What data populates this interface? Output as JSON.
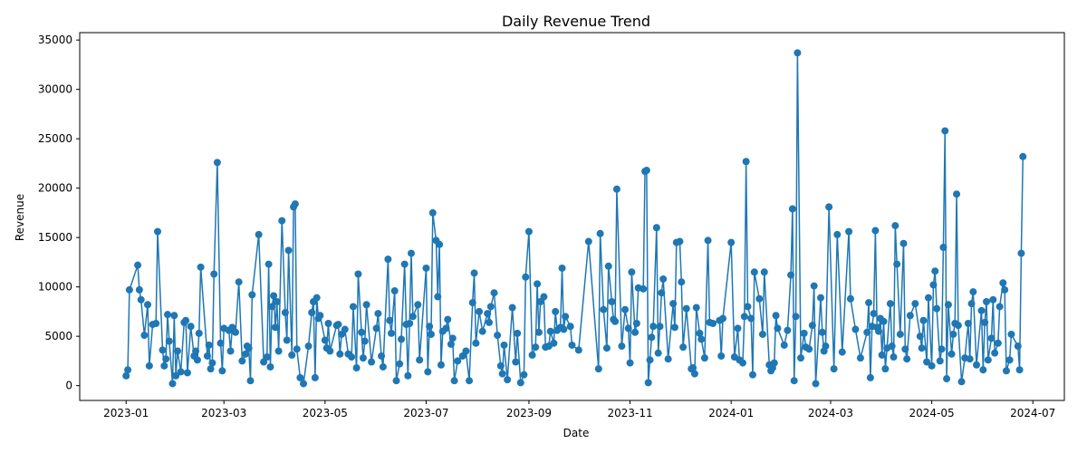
{
  "chart_data": {
    "type": "line",
    "title": "Daily Revenue Trend",
    "x_label": "Date",
    "y_label": "Revenue",
    "color": "#1f77b4",
    "grid": false,
    "x": [
      "2023-01-01",
      "2023-01-02",
      "2023-01-03",
      "2023-01-08",
      "2023-01-09",
      "2023-01-10",
      "2023-01-12",
      "2023-01-14",
      "2023-01-15",
      "2023-01-17",
      "2023-01-19",
      "2023-01-20",
      "2023-01-23",
      "2023-01-24",
      "2023-01-25",
      "2023-01-26",
      "2023-01-27",
      "2023-01-29",
      "2023-01-30",
      "2023-01-31",
      "2023-02-01",
      "2023-02-03",
      "2023-02-05",
      "2023-02-06",
      "2023-02-07",
      "2023-02-09",
      "2023-02-11",
      "2023-02-12",
      "2023-02-13",
      "2023-02-14",
      "2023-02-15",
      "2023-02-19",
      "2023-02-20",
      "2023-02-21",
      "2023-02-22",
      "2023-02-23",
      "2023-02-25",
      "2023-02-27",
      "2023-02-28",
      "2023-03-01",
      "2023-03-04",
      "2023-03-05",
      "2023-03-06",
      "2023-03-08",
      "2023-03-10",
      "2023-03-12",
      "2023-03-14",
      "2023-03-15",
      "2023-03-16",
      "2023-03-17",
      "2023-03-18",
      "2023-03-22",
      "2023-03-25",
      "2023-03-27",
      "2023-03-28",
      "2023-03-29",
      "2023-03-30",
      "2023-03-31",
      "2023-04-01",
      "2023-04-02",
      "2023-04-03",
      "2023-04-05",
      "2023-04-07",
      "2023-04-08",
      "2023-04-09",
      "2023-04-11",
      "2023-04-12",
      "2023-04-13",
      "2023-04-14",
      "2023-04-16",
      "2023-04-18",
      "2023-04-21",
      "2023-04-23",
      "2023-04-24",
      "2023-04-25",
      "2023-04-26",
      "2023-04-27",
      "2023-04-28",
      "2023-05-01",
      "2023-05-02",
      "2023-05-03",
      "2023-05-04",
      "2023-05-08",
      "2023-05-09",
      "2023-05-10",
      "2023-05-11",
      "2023-05-13",
      "2023-05-15",
      "2023-05-17",
      "2023-05-18",
      "2023-05-20",
      "2023-05-21",
      "2023-05-23",
      "2023-05-24",
      "2023-05-25",
      "2023-05-26",
      "2023-05-29",
      "2023-06-01",
      "2023-06-02",
      "2023-06-04",
      "2023-06-05",
      "2023-06-08",
      "2023-06-09",
      "2023-06-10",
      "2023-06-12",
      "2023-06-13",
      "2023-06-15",
      "2023-06-16",
      "2023-06-18",
      "2023-06-19",
      "2023-06-20",
      "2023-06-21",
      "2023-06-22",
      "2023-06-23",
      "2023-06-26",
      "2023-06-27",
      "2023-07-01",
      "2023-07-02",
      "2023-07-03",
      "2023-07-04",
      "2023-07-05",
      "2023-07-07",
      "2023-07-08",
      "2023-07-09",
      "2023-07-10",
      "2023-07-11",
      "2023-07-13",
      "2023-07-14",
      "2023-07-16",
      "2023-07-17",
      "2023-07-18",
      "2023-07-20",
      "2023-07-23",
      "2023-07-25",
      "2023-07-27",
      "2023-07-29",
      "2023-07-30",
      "2023-07-31",
      "2023-08-02",
      "2023-08-04",
      "2023-08-07",
      "2023-08-08",
      "2023-08-09",
      "2023-08-11",
      "2023-08-13",
      "2023-08-15",
      "2023-08-16",
      "2023-08-17",
      "2023-08-19",
      "2023-08-22",
      "2023-08-24",
      "2023-08-25",
      "2023-08-27",
      "2023-08-29",
      "2023-08-30",
      "2023-09-01",
      "2023-09-03",
      "2023-09-05",
      "2023-09-06",
      "2023-09-07",
      "2023-09-08",
      "2023-09-10",
      "2023-09-11",
      "2023-09-13",
      "2023-09-14",
      "2023-09-16",
      "2023-09-17",
      "2023-09-18",
      "2023-09-20",
      "2023-09-21",
      "2023-09-22",
      "2023-09-23",
      "2023-09-26",
      "2023-09-27",
      "2023-10-01",
      "2023-10-07",
      "2023-10-13",
      "2023-10-14",
      "2023-10-16",
      "2023-10-18",
      "2023-10-19",
      "2023-10-21",
      "2023-10-22",
      "2023-10-23",
      "2023-10-24",
      "2023-10-27",
      "2023-10-29",
      "2023-10-31",
      "2023-11-01",
      "2023-11-02",
      "2023-11-04",
      "2023-11-05",
      "2023-11-06",
      "2023-11-09",
      "2023-11-10",
      "2023-11-11",
      "2023-11-12",
      "2023-11-13",
      "2023-11-14",
      "2023-11-15",
      "2023-11-17",
      "2023-11-18",
      "2023-11-19",
      "2023-11-20",
      "2023-11-21",
      "2023-11-24",
      "2023-11-27",
      "2023-11-28",
      "2023-11-29",
      "2023-12-01",
      "2023-12-02",
      "2023-12-03",
      "2023-12-05",
      "2023-12-08",
      "2023-12-09",
      "2023-12-10",
      "2023-12-11",
      "2023-12-13",
      "2023-12-14",
      "2023-12-16",
      "2023-12-18",
      "2023-12-19",
      "2023-12-21",
      "2023-12-25",
      "2023-12-26",
      "2023-12-27",
      "2024-01-01",
      "2024-01-03",
      "2024-01-05",
      "2024-01-06",
      "2024-01-08",
      "2024-01-09",
      "2024-01-10",
      "2024-01-11",
      "2024-01-13",
      "2024-01-14",
      "2024-01-15",
      "2024-01-18",
      "2024-01-20",
      "2024-01-21",
      "2024-01-24",
      "2024-01-25",
      "2024-01-26",
      "2024-01-27",
      "2024-01-28",
      "2024-01-29",
      "2024-02-02",
      "2024-02-04",
      "2024-02-06",
      "2024-02-07",
      "2024-02-08",
      "2024-02-09",
      "2024-02-10",
      "2024-02-12",
      "2024-02-14",
      "2024-02-15",
      "2024-02-17",
      "2024-02-19",
      "2024-02-20",
      "2024-02-21",
      "2024-02-24",
      "2024-02-25",
      "2024-02-26",
      "2024-02-27",
      "2024-02-29",
      "2024-03-03",
      "2024-03-05",
      "2024-03-08",
      "2024-03-12",
      "2024-03-13",
      "2024-03-16",
      "2024-03-19",
      "2024-03-23",
      "2024-03-24",
      "2024-03-25",
      "2024-03-26",
      "2024-03-27",
      "2024-03-28",
      "2024-03-29",
      "2024-03-30",
      "2024-03-31",
      "2024-04-01",
      "2024-04-02",
      "2024-04-03",
      "2024-04-04",
      "2024-04-06",
      "2024-04-07",
      "2024-04-08",
      "2024-04-09",
      "2024-04-10",
      "2024-04-12",
      "2024-04-14",
      "2024-04-15",
      "2024-04-16",
      "2024-04-18",
      "2024-04-21",
      "2024-04-24",
      "2024-04-25",
      "2024-04-26",
      "2024-04-28",
      "2024-04-29",
      "2024-05-01",
      "2024-05-02",
      "2024-05-03",
      "2024-05-04",
      "2024-05-06",
      "2024-05-07",
      "2024-05-08",
      "2024-05-09",
      "2024-05-10",
      "2024-05-11",
      "2024-05-13",
      "2024-05-14",
      "2024-05-15",
      "2024-05-16",
      "2024-05-17",
      "2024-05-19",
      "2024-05-21",
      "2024-05-23",
      "2024-05-24",
      "2024-05-25",
      "2024-05-26",
      "2024-05-28",
      "2024-05-31",
      "2024-06-01",
      "2024-06-02",
      "2024-06-03",
      "2024-06-04",
      "2024-06-06",
      "2024-06-07",
      "2024-06-08",
      "2024-06-10",
      "2024-06-11",
      "2024-06-13",
      "2024-06-14",
      "2024-06-15",
      "2024-06-17",
      "2024-06-18",
      "2024-06-22",
      "2024-06-23",
      "2024-06-24",
      "2024-06-25"
    ],
    "values": [
      1000,
      1600,
      9700,
      12200,
      9700,
      8700,
      5100,
      8200,
      2000,
      6200,
      6300,
      15600,
      3600,
      2000,
      2700,
      7200,
      4500,
      200,
      7100,
      1000,
      3500,
      1400,
      6400,
      6600,
      1300,
      6000,
      3000,
      3500,
      2600,
      5300,
      12000,
      3000,
      4100,
      1700,
      2300,
      11300,
      22600,
      4300,
      1500,
      5800,
      5600,
      3500,
      5900,
      5400,
      10500,
      2500,
      3200,
      4000,
      3800,
      500,
      9200,
      15300,
      2400,
      2900,
      12300,
      1900,
      8000,
      9100,
      5900,
      8500,
      3500,
      16700,
      7400,
      4600,
      13700,
      3100,
      18100,
      18400,
      3700,
      800,
      200,
      4000,
      7400,
      8500,
      800,
      8900,
      6800,
      7100,
      4600,
      3800,
      6300,
      3500,
      6100,
      6200,
      3200,
      5200,
      5700,
      3200,
      2900,
      8000,
      1800,
      11300,
      5400,
      2800,
      4500,
      8200,
      2400,
      5800,
      7300,
      3000,
      1900,
      12800,
      6600,
      5300,
      9600,
      500,
      2200,
      4700,
      12300,
      6200,
      1000,
      6300,
      13400,
      7000,
      8200,
      2600,
      11900,
      1400,
      6000,
      5200,
      17500,
      14700,
      9000,
      14300,
      2100,
      5500,
      5800,
      6700,
      4200,
      4800,
      500,
      2500,
      3000,
      3500,
      500,
      8400,
      11400,
      4300,
      7500,
      5500,
      7300,
      6400,
      8000,
      9400,
      5100,
      2000,
      1200,
      4100,
      600,
      7900,
      2400,
      5300,
      300,
      1100,
      11000,
      15600,
      3100,
      3900,
      10300,
      5400,
      8500,
      9000,
      3900,
      4000,
      5500,
      4300,
      7500,
      5600,
      5900,
      11900,
      5700,
      7000,
      6000,
      4100,
      3600,
      14600,
      1700,
      15400,
      7700,
      3800,
      12100,
      8500,
      6700,
      6500,
      19900,
      4000,
      7700,
      5800,
      2300,
      11500,
      5400,
      6300,
      9900,
      9800,
      21700,
      21800,
      300,
      2600,
      4900,
      6000,
      16000,
      3300,
      6000,
      9400,
      10800,
      2700,
      8300,
      5900,
      14500,
      14600,
      10500,
      3900,
      7800,
      1700,
      1800,
      1200,
      7900,
      5300,
      4700,
      2800,
      14700,
      6400,
      6300,
      6600,
      3000,
      6800,
      14500,
      2900,
      5800,
      2600,
      2300,
      7000,
      22700,
      8000,
      6800,
      1100,
      11500,
      8800,
      5200,
      11500,
      2100,
      1500,
      1800,
      2300,
      7100,
      5800,
      4100,
      5600,
      11200,
      17900,
      500,
      7000,
      33700,
      2800,
      5300,
      3900,
      3700,
      6100,
      10100,
      200,
      8900,
      5400,
      3500,
      4000,
      18100,
      1700,
      15300,
      3400,
      15600,
      8800,
      5700,
      2800,
      5400,
      8400,
      800,
      6000,
      7300,
      15700,
      5900,
      5500,
      6800,
      3100,
      6500,
      1700,
      3800,
      8300,
      4000,
      2900,
      16200,
      12300,
      5200,
      14400,
      3700,
      2700,
      7100,
      8300,
      5000,
      3800,
      6600,
      2400,
      8900,
      2000,
      10200,
      11600,
      7800,
      2500,
      3700,
      14000,
      25800,
      700,
      8200,
      3200,
      5200,
      6300,
      19400,
      6100,
      400,
      2800,
      6300,
      2700,
      8300,
      9500,
      2100,
      7600,
      1600,
      6400,
      8500,
      2600,
      4800,
      8700,
      3300,
      4300,
      8000,
      10400,
      9700,
      1500,
      2600,
      5200,
      4000,
      1600,
      13400,
      23200
    ],
    "xlim": [
      "2022-12-04",
      "2024-07-20"
    ],
    "xticks": [
      {
        "value": "2023-01-01",
        "label": "2023-01"
      },
      {
        "value": "2023-03-01",
        "label": "2023-03"
      },
      {
        "value": "2023-05-01",
        "label": "2023-05"
      },
      {
        "value": "2023-07-01",
        "label": "2023-07"
      },
      {
        "value": "2023-09-01",
        "label": "2023-09"
      },
      {
        "value": "2023-11-01",
        "label": "2023-11"
      },
      {
        "value": "2024-01-01",
        "label": "2024-01"
      },
      {
        "value": "2024-03-01",
        "label": "2024-03"
      },
      {
        "value": "2024-05-01",
        "label": "2024-05"
      },
      {
        "value": "2024-07-01",
        "label": "2024-07"
      }
    ],
    "ylim": [
      -1500,
      35750
    ],
    "yticks": [
      0,
      5000,
      10000,
      15000,
      20000,
      25000,
      30000,
      35000
    ]
  }
}
